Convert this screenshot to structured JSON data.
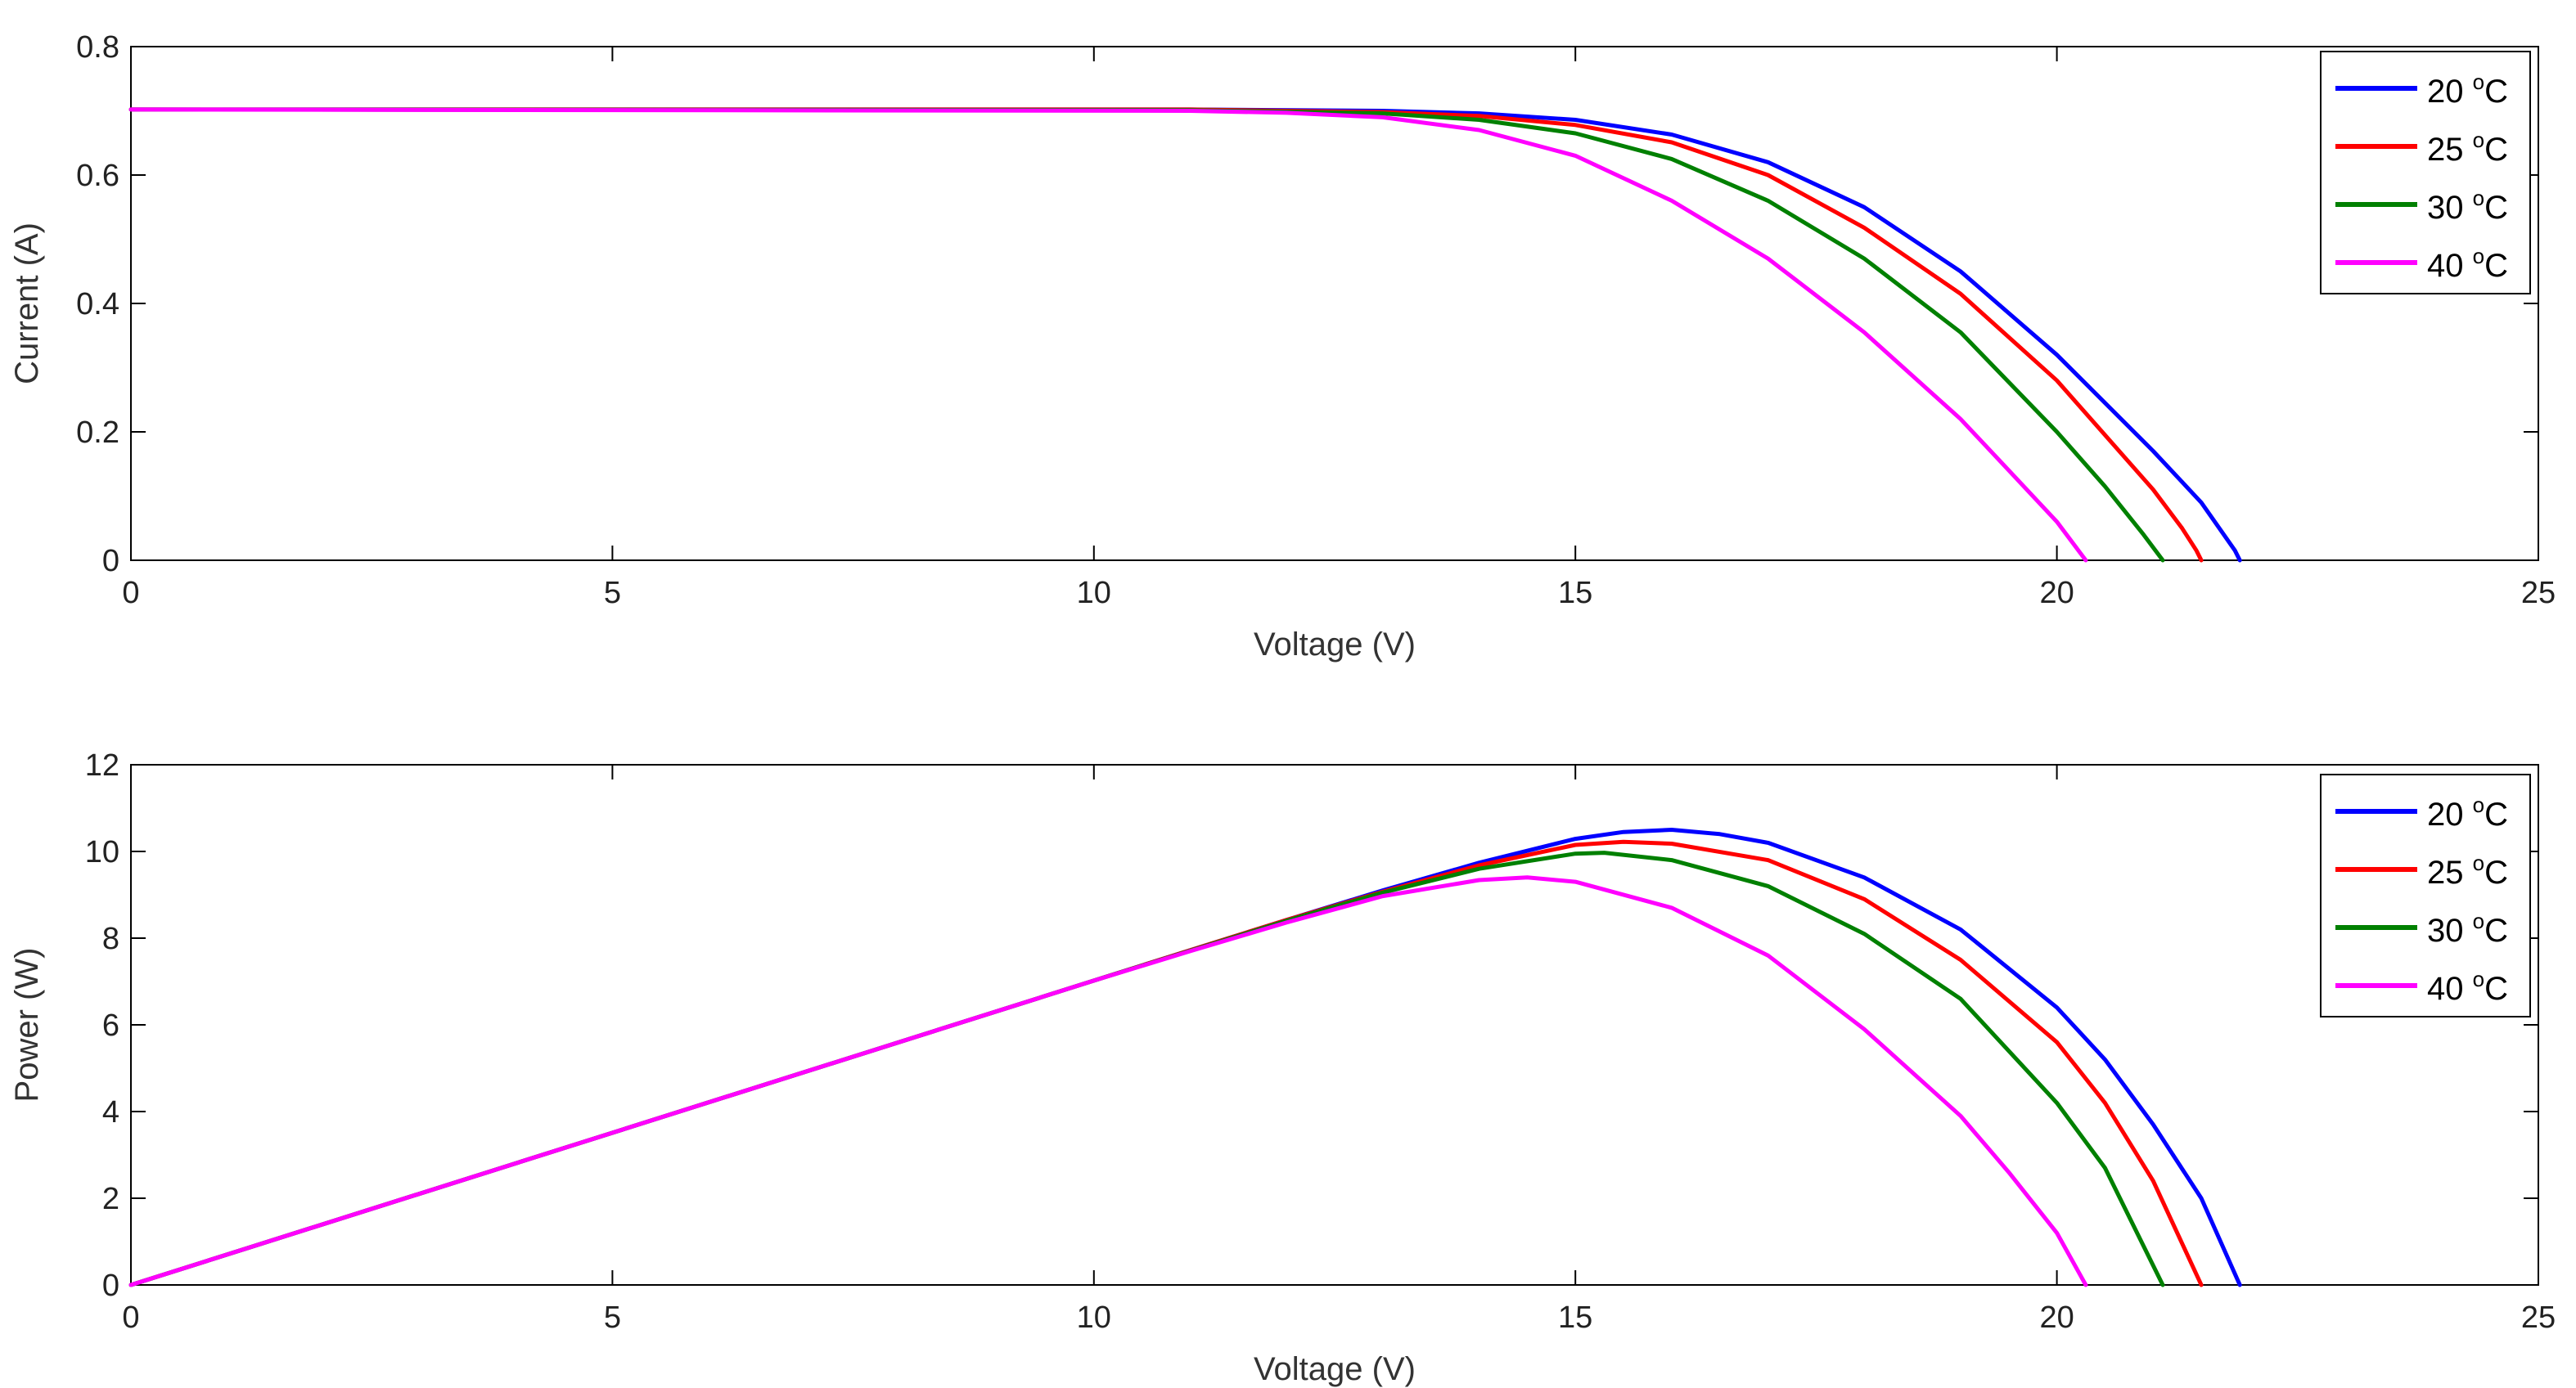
{
  "chart_data": [
    {
      "type": "line",
      "title": "",
      "xlabel": "Voltage (V)",
      "ylabel": "Current (A)",
      "xlim": [
        0,
        25
      ],
      "ylim": [
        0,
        0.8
      ],
      "xticks": [
        0,
        5,
        10,
        15,
        20,
        25
      ],
      "yticks": [
        0,
        0.2,
        0.4,
        0.6,
        0.8
      ],
      "ytick_labels": [
        "0",
        "0.2",
        "0.4",
        "0.6",
        "0.8"
      ],
      "grid": false,
      "legend_position": "top-right",
      "series": [
        {
          "name": "20 °C",
          "color": "#0000ff",
          "x": [
            0,
            11,
            13,
            14,
            15,
            16,
            17,
            18,
            19,
            20,
            21,
            21.5,
            21.85,
            21.9
          ],
          "y": [
            0.702,
            0.702,
            0.7,
            0.696,
            0.686,
            0.663,
            0.62,
            0.55,
            0.45,
            0.32,
            0.17,
            0.09,
            0.015,
            0.0
          ]
        },
        {
          "name": "25 °C",
          "color": "#ff0000",
          "x": [
            0,
            11,
            13,
            14,
            15,
            16,
            17,
            18,
            19,
            20,
            21,
            21.3,
            21.45,
            21.5
          ],
          "y": [
            0.702,
            0.702,
            0.698,
            0.692,
            0.678,
            0.651,
            0.6,
            0.518,
            0.415,
            0.28,
            0.11,
            0.05,
            0.015,
            0.0
          ]
        },
        {
          "name": "30 °C",
          "color": "#008000",
          "x": [
            0,
            11,
            13,
            14,
            15,
            16,
            17,
            18,
            19,
            20,
            20.5,
            20.9,
            21.1
          ],
          "y": [
            0.702,
            0.701,
            0.696,
            0.686,
            0.665,
            0.625,
            0.56,
            0.47,
            0.355,
            0.2,
            0.115,
            0.04,
            0.0
          ]
        },
        {
          "name": "40 °C",
          "color": "#ff00ff",
          "x": [
            0,
            11,
            12,
            13,
            14,
            15,
            16,
            17,
            18,
            19,
            19.5,
            20,
            20.3
          ],
          "y": [
            0.702,
            0.7,
            0.697,
            0.69,
            0.67,
            0.63,
            0.56,
            0.47,
            0.355,
            0.22,
            0.14,
            0.06,
            0.0
          ]
        }
      ],
      "legend": {
        "labels": [
          "20",
          "25",
          "30",
          "40"
        ],
        "unit_sup": "o",
        "unit": "C"
      }
    },
    {
      "type": "line",
      "title": "",
      "xlabel": "Voltage (V)",
      "ylabel": "Power (W)",
      "xlim": [
        0,
        25
      ],
      "ylim": [
        0,
        12
      ],
      "xticks": [
        0,
        5,
        10,
        15,
        20,
        25
      ],
      "yticks": [
        0,
        2,
        4,
        6,
        8,
        10,
        12
      ],
      "ytick_labels": [
        "0",
        "2",
        "4",
        "6",
        "8",
        "10",
        "12"
      ],
      "grid": false,
      "legend_position": "top-right",
      "series": [
        {
          "name": "20 °C",
          "color": "#0000ff",
          "x": [
            0,
            10,
            12,
            13,
            14,
            15,
            15.5,
            16,
            16.5,
            17,
            18,
            19,
            20,
            20.5,
            21,
            21.5,
            21.9
          ],
          "y": [
            0.0,
            7.02,
            8.42,
            9.1,
            9.74,
            10.29,
            10.45,
            10.5,
            10.4,
            10.2,
            9.4,
            8.2,
            6.4,
            5.2,
            3.7,
            2.0,
            0.0
          ]
        },
        {
          "name": "25 °C",
          "color": "#ff0000",
          "x": [
            0,
            10,
            12,
            13,
            14,
            15,
            15.5,
            16,
            17,
            18,
            19,
            20,
            20.5,
            21,
            21.5
          ],
          "y": [
            0.0,
            7.02,
            8.42,
            9.07,
            9.68,
            10.15,
            10.22,
            10.18,
            9.8,
            8.9,
            7.5,
            5.6,
            4.2,
            2.4,
            0.0
          ]
        },
        {
          "name": "30 °C",
          "color": "#008000",
          "x": [
            0,
            10,
            12,
            13,
            14,
            15,
            15.3,
            16,
            17,
            18,
            19,
            20,
            20.5,
            21.1
          ],
          "y": [
            0.0,
            7.02,
            8.4,
            9.05,
            9.6,
            9.95,
            9.97,
            9.8,
            9.2,
            8.1,
            6.6,
            4.2,
            2.7,
            0.0
          ]
        },
        {
          "name": "40 °C",
          "color": "#ff00ff",
          "x": [
            0,
            10,
            11,
            12,
            13,
            14,
            14.5,
            15,
            16,
            17,
            18,
            19,
            19.5,
            20,
            20.3
          ],
          "y": [
            0.0,
            7.02,
            7.7,
            8.36,
            8.97,
            9.34,
            9.4,
            9.3,
            8.7,
            7.6,
            5.9,
            3.9,
            2.6,
            1.2,
            0.0
          ]
        }
      ],
      "legend": {
        "labels": [
          "20",
          "25",
          "30",
          "40"
        ],
        "unit_sup": "o",
        "unit": "C"
      }
    }
  ]
}
